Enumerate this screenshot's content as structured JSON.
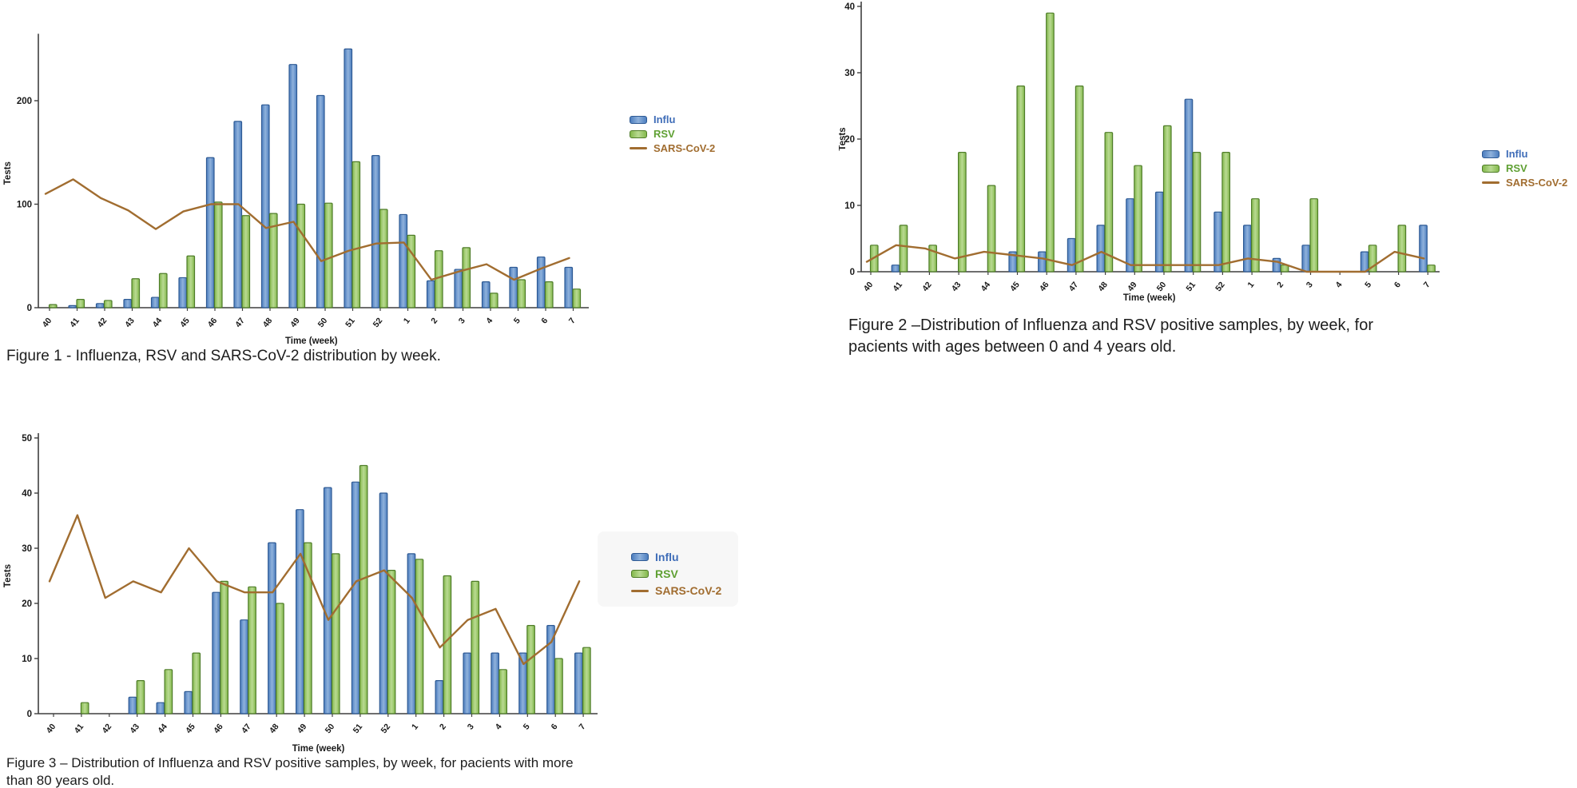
{
  "page": {
    "background": "#ffffff"
  },
  "colors": {
    "influ_fill": "#4d7ebf",
    "influ_light": "#8fb2dc",
    "influ_stroke": "#2e5a94",
    "rsv_fill": "#84b94d",
    "rsv_light": "#b9da92",
    "rsv_stroke": "#4e7c28",
    "sars_line": "#a16d30",
    "axis": "#3f3f3f",
    "text": "#1d1d1d"
  },
  "chart_data": [
    {
      "id": "figure-1",
      "type": "bar",
      "caption_lines": [
        "Figure 1 - Influenza, RSV and SARS-CoV-2 distribution by week.",
        ""
      ],
      "xlabel": "Time (week)",
      "ylabel": "Tests",
      "categories": [
        "40",
        "41",
        "42",
        "43",
        "44",
        "45",
        "46",
        "47",
        "48",
        "49",
        "50",
        "51",
        "52",
        "1",
        "2",
        "3",
        "4",
        "5",
        "6",
        "7"
      ],
      "ylim": [
        0,
        260
      ],
      "yticks": [
        0,
        100,
        200
      ],
      "legend_position": "right",
      "grid": false,
      "series": [
        {
          "name": "Influ",
          "type": "bar",
          "color": "#4d7ebf",
          "color_light": "#8fb2dc",
          "stroke": "#2e5a94",
          "values": [
            0,
            2,
            4,
            8,
            10,
            29,
            145,
            180,
            196,
            235,
            205,
            250,
            147,
            90,
            26,
            37,
            25,
            39,
            49,
            39
          ]
        },
        {
          "name": "RSV",
          "type": "bar",
          "color": "#84b94d",
          "color_light": "#b9da92",
          "stroke": "#4e7c28",
          "values": [
            3,
            8,
            7,
            28,
            33,
            50,
            102,
            89,
            91,
            100,
            101,
            141,
            95,
            70,
            55,
            58,
            14,
            27,
            25,
            18
          ]
        },
        {
          "name": "SARS-CoV-2",
          "type": "line",
          "color": "#a16d30",
          "values": [
            110,
            124,
            106,
            94,
            76,
            93,
            100,
            100,
            77,
            83,
            45,
            55,
            62,
            63,
            27,
            35,
            42,
            27,
            38,
            48
          ]
        }
      ]
    },
    {
      "id": "figure-2",
      "type": "bar",
      "caption_lines": [
        "Figure 2 –Distribution of Influenza and RSV positive samples, by week, for",
        "pacients with ages between 0 and 4 years old."
      ],
      "xlabel": "Time (week)",
      "ylabel": "Tests",
      "categories": [
        "40",
        "41",
        "42",
        "43",
        "44",
        "45",
        "46",
        "47",
        "48",
        "49",
        "50",
        "51",
        "52",
        "1",
        "2",
        "3",
        "4",
        "5",
        "6",
        "7"
      ],
      "ylim": [
        0,
        40
      ],
      "yticks": [
        0,
        10,
        20,
        30,
        40
      ],
      "legend_position": "right",
      "grid": false,
      "series": [
        {
          "name": "Influ",
          "type": "bar",
          "color": "#4d7ebf",
          "color_light": "#8fb2dc",
          "stroke": "#2e5a94",
          "values": [
            0,
            1,
            0,
            0,
            0,
            3,
            3,
            5,
            7,
            11,
            12,
            26,
            9,
            7,
            2,
            4,
            0,
            3,
            0,
            7
          ]
        },
        {
          "name": "RSV",
          "type": "bar",
          "color": "#84b94d",
          "color_light": "#b9da92",
          "stroke": "#4e7c28",
          "values": [
            4,
            7,
            4,
            18,
            13,
            28,
            39,
            28,
            21,
            16,
            22,
            18,
            18,
            11,
            1,
            11,
            0,
            4,
            7,
            1
          ]
        },
        {
          "name": "SARS-CoV-2",
          "type": "line",
          "color": "#a16d30",
          "values": [
            1.5,
            4,
            3.5,
            2,
            3,
            2.5,
            2,
            1,
            3,
            1,
            1,
            1,
            1,
            2,
            1.5,
            0,
            0,
            0,
            3,
            2
          ]
        }
      ]
    },
    {
      "id": "figure-3",
      "type": "bar",
      "caption_lines": [
        "Figure 3 – Distribution of Influenza and RSV positive samples, by week, for pacients with more",
        "than 80 years old."
      ],
      "xlabel": "Time (week)",
      "ylabel": "Tests",
      "categories": [
        "40",
        "41",
        "42",
        "43",
        "44",
        "45",
        "46",
        "47",
        "48",
        "49",
        "50",
        "51",
        "52",
        "1",
        "2",
        "3",
        "4",
        "5",
        "6",
        "7"
      ],
      "ylim": [
        0,
        50
      ],
      "yticks": [
        0,
        10,
        20,
        30,
        40,
        50
      ],
      "legend_position": "right",
      "grid": false,
      "series": [
        {
          "name": "Influ",
          "type": "bar",
          "color": "#4d7ebf",
          "color_light": "#8fb2dc",
          "stroke": "#2e5a94",
          "values": [
            0,
            0,
            0,
            3,
            2,
            4,
            22,
            17,
            31,
            37,
            41,
            42,
            40,
            29,
            6,
            11,
            11,
            11,
            16,
            11
          ]
        },
        {
          "name": "RSV",
          "type": "bar",
          "color": "#84b94d",
          "color_light": "#b9da92",
          "stroke": "#4e7c28",
          "values": [
            0,
            2,
            0,
            6,
            8,
            11,
            24,
            23,
            20,
            31,
            29,
            45,
            26,
            28,
            25,
            24,
            8,
            16,
            10,
            12
          ]
        },
        {
          "name": "SARS-CoV-2",
          "type": "line",
          "color": "#a16d30",
          "values": [
            24,
            36,
            21,
            24,
            22,
            30,
            24,
            22,
            22,
            29,
            17,
            24,
            26,
            21,
            12,
            17,
            19,
            9,
            13,
            24
          ]
        }
      ]
    }
  ]
}
